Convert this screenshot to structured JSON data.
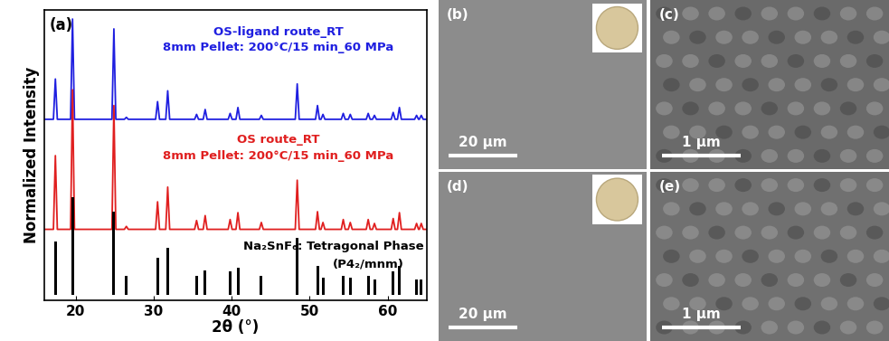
{
  "chart_data": {
    "type": "line",
    "panel": "(a)",
    "x_label": "2θ (°)",
    "y_label": "Normalized Intensity",
    "xlim": [
      16,
      65
    ],
    "xticks": [
      20,
      30,
      40,
      50,
      60
    ],
    "ylim": [
      -0.05,
      2.9
    ],
    "tick_labels": "x",
    "grid": false,
    "series": [
      {
        "name": "OS-ligand route_RT",
        "annotation": "8mm Pellet: 200°C/15 min_60 MPa",
        "type": "line",
        "color": "#1f1fe0",
        "x": [
          16,
          17.15,
          17.4,
          17.65,
          19.35,
          19.6,
          19.85,
          24.65,
          24.9,
          25.15,
          26.25,
          26.5,
          26.75,
          30.25,
          30.5,
          30.75,
          31.55,
          31.8,
          32.05,
          35.25,
          35.5,
          35.75,
          36.35,
          36.6,
          36.85,
          39.55,
          39.8,
          40.05,
          40.55,
          40.8,
          41.05,
          43.55,
          43.8,
          44.05,
          48.15,
          48.4,
          48.65,
          50.75,
          51.0,
          51.25,
          51.45,
          51.7,
          51.95,
          54.05,
          54.3,
          54.55,
          54.95,
          55.2,
          55.45,
          57.25,
          57.5,
          57.75,
          58.05,
          58.3,
          58.55,
          60.45,
          60.7,
          60.95,
          61.25,
          61.5,
          61.75,
          63.45,
          63.7,
          63.95,
          64.05,
          64.3,
          64.55,
          65
        ],
        "values": [
          1.79,
          1.79,
          2.2,
          1.79,
          1.79,
          2.81,
          1.79,
          1.79,
          2.71,
          1.79,
          1.79,
          1.81,
          1.79,
          1.79,
          1.97,
          1.79,
          1.79,
          2.08,
          1.79,
          1.79,
          1.84,
          1.79,
          1.79,
          1.89,
          1.79,
          1.79,
          1.85,
          1.79,
          1.79,
          1.91,
          1.79,
          1.79,
          1.83,
          1.79,
          1.79,
          2.15,
          1.79,
          1.79,
          1.93,
          1.79,
          1.79,
          1.84,
          1.79,
          1.79,
          1.85,
          1.79,
          1.79,
          1.84,
          1.79,
          1.79,
          1.85,
          1.79,
          1.79,
          1.83,
          1.79,
          1.79,
          1.86,
          1.79,
          1.79,
          1.91,
          1.79,
          1.79,
          1.83,
          1.79,
          1.79,
          1.83,
          1.79,
          1.79
        ]
      },
      {
        "name": "OS route_RT",
        "annotation": "8mm Pellet: 200°C/15 min_60 MPa",
        "type": "line",
        "color": "#e01f1f",
        "x": [
          16,
          17.15,
          17.4,
          17.65,
          19.35,
          19.6,
          19.85,
          24.65,
          24.9,
          25.15,
          26.25,
          26.5,
          26.75,
          30.25,
          30.5,
          30.75,
          31.55,
          31.8,
          32.05,
          35.25,
          35.5,
          35.75,
          36.35,
          36.6,
          36.85,
          39.55,
          39.8,
          40.05,
          40.55,
          40.8,
          41.05,
          43.55,
          43.8,
          44.05,
          48.15,
          48.4,
          48.65,
          50.75,
          51.0,
          51.25,
          51.45,
          51.7,
          51.95,
          54.05,
          54.3,
          54.55,
          54.95,
          55.2,
          55.45,
          57.25,
          57.5,
          57.75,
          58.05,
          58.3,
          58.55,
          60.45,
          60.7,
          60.95,
          61.25,
          61.5,
          61.75,
          63.45,
          63.7,
          63.95,
          64.05,
          64.3,
          64.55,
          65
        ],
        "values": [
          0.67,
          0.67,
          1.42,
          0.67,
          0.67,
          2.09,
          0.67,
          0.67,
          1.93,
          0.67,
          0.67,
          0.7,
          0.67,
          0.67,
          0.95,
          0.67,
          0.67,
          1.1,
          0.67,
          0.67,
          0.76,
          0.67,
          0.67,
          0.81,
          0.67,
          0.67,
          0.77,
          0.67,
          0.67,
          0.84,
          0.67,
          0.67,
          0.74,
          0.67,
          0.67,
          1.17,
          0.67,
          0.67,
          0.85,
          0.67,
          0.67,
          0.74,
          0.67,
          0.67,
          0.77,
          0.67,
          0.67,
          0.74,
          0.67,
          0.67,
          0.77,
          0.67,
          0.67,
          0.73,
          0.67,
          0.67,
          0.78,
          0.67,
          0.67,
          0.84,
          0.67,
          0.67,
          0.73,
          0.67,
          0.67,
          0.73,
          0.67,
          0.67
        ]
      },
      {
        "name": "Na₂SnF₆: Tetragonal Phase",
        "annotation": "(P4₂/mnm)",
        "type": "bar",
        "color": "#000000",
        "x": [
          17.4,
          19.6,
          24.9,
          26.5,
          30.5,
          31.8,
          35.5,
          36.6,
          39.8,
          40.8,
          43.8,
          48.4,
          51.0,
          51.7,
          54.3,
          55.2,
          57.5,
          58.3,
          60.7,
          61.5,
          63.7,
          64.3
        ],
        "values": [
          0.55,
          1.0,
          0.85,
          0.2,
          0.38,
          0.48,
          0.2,
          0.25,
          0.24,
          0.28,
          0.2,
          0.58,
          0.3,
          0.18,
          0.2,
          0.18,
          0.2,
          0.16,
          0.24,
          0.3,
          0.16,
          0.16
        ]
      }
    ]
  },
  "images": [
    {
      "label": "(b)",
      "scale_bar": "20 μm"
    },
    {
      "label": "(c)",
      "scale_bar": "1 μm"
    },
    {
      "label": "(d)",
      "scale_bar": "20 μm"
    },
    {
      "label": "(e)",
      "scale_bar": "1 μm"
    }
  ]
}
